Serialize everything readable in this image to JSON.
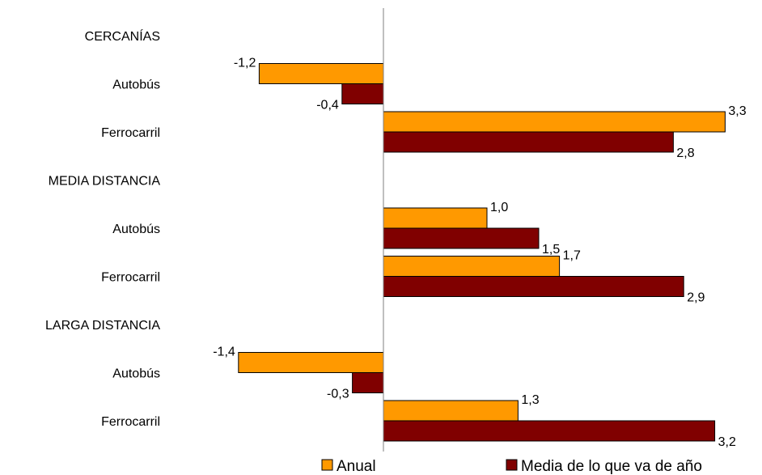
{
  "chart_data": {
    "type": "bar",
    "orientation": "horizontal",
    "rows": [
      {
        "label": "CERCANÍAS",
        "kind": "group"
      },
      {
        "label": "Autobús",
        "kind": "category",
        "values": [
          -1.2,
          -0.4
        ],
        "value_labels": [
          "-1,2",
          "-0,4"
        ]
      },
      {
        "label": "Ferrocarril",
        "kind": "category",
        "values": [
          3.3,
          2.8
        ],
        "value_labels": [
          "3,3",
          "2,8"
        ]
      },
      {
        "label": "MEDIA DISTANCIA",
        "kind": "group"
      },
      {
        "label": "Autobús",
        "kind": "category",
        "values": [
          1.0,
          1.5
        ],
        "value_labels": [
          "1,0",
          "1,5"
        ]
      },
      {
        "label": "Ferrocarril",
        "kind": "category",
        "values": [
          1.7,
          2.9
        ],
        "value_labels": [
          "1,7",
          "2,9"
        ]
      },
      {
        "label": "LARGA DISTANCIA",
        "kind": "group"
      },
      {
        "label": "Autobús",
        "kind": "category",
        "values": [
          -1.4,
          -0.3
        ],
        "value_labels": [
          "-1,4",
          "-0,3"
        ]
      },
      {
        "label": "Ferrocarril",
        "kind": "category",
        "values": [
          1.3,
          3.2
        ],
        "value_labels": [
          "1,3",
          "3,2"
        ]
      }
    ],
    "series": [
      {
        "name": "Anual",
        "color": "#FF9900"
      },
      {
        "name": "Media de lo que va de año",
        "color": "#800000"
      }
    ],
    "xlim": [
      -1.5,
      3.3
    ],
    "grid": false,
    "legend_position": "bottom"
  }
}
